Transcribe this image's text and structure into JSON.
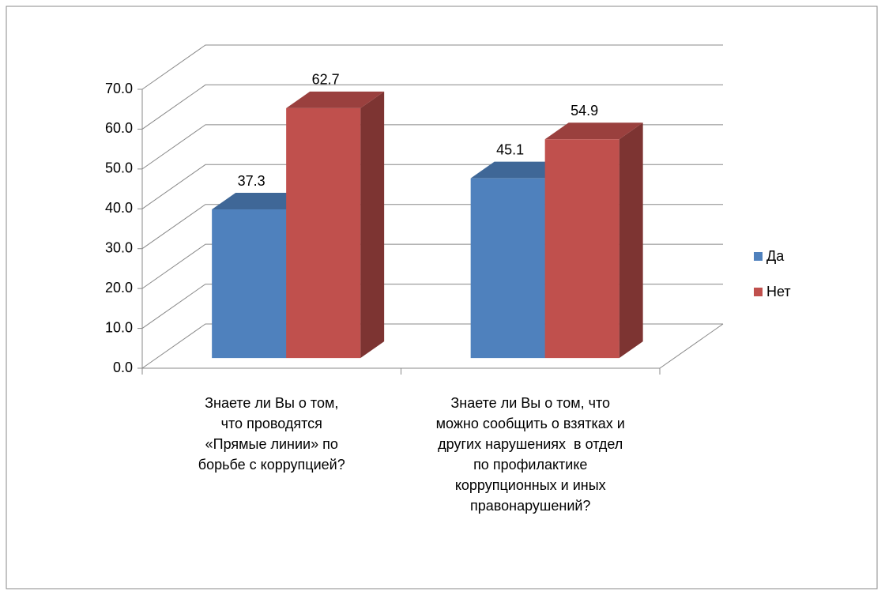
{
  "chart_data": {
    "type": "bar3d",
    "categories": [
      "Знаете ли Вы о том, что проводятся «Прямые линии» по борьбе с коррупцией?",
      "Знаете ли Вы о том, что можно сообщить о взятках и других нарушениях  в отдел по профилактике коррупционных и иных правонарушений?"
    ],
    "series": [
      {
        "name": "Да",
        "color": "#4f81bd",
        "values": [
          37.3,
          45.1
        ]
      },
      {
        "name": "Нет",
        "color": "#c0504d",
        "values": [
          62.7,
          54.9
        ]
      }
    ],
    "ylim": [
      0,
      70
    ],
    "yticks": [
      {
        "value": 0,
        "label": "0.0"
      },
      {
        "value": 10,
        "label": "10.0"
      },
      {
        "value": 20,
        "label": "20.0"
      },
      {
        "value": 30,
        "label": "30.0"
      },
      {
        "value": 40,
        "label": "40.0"
      },
      {
        "value": 50,
        "label": "50.0"
      },
      {
        "value": 60,
        "label": "60.0"
      },
      {
        "value": 70,
        "label": "70.0"
      }
    ],
    "grid": true,
    "legend": "right"
  }
}
